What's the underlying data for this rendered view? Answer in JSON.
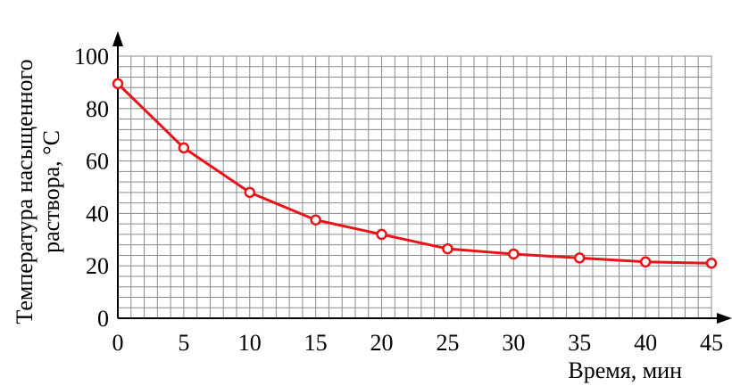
{
  "chart_data": {
    "type": "line",
    "title": "",
    "xlabel": "Время, мин",
    "ylabel_line1": "Температура насыщенного",
    "ylabel_line2": "раствора, °С",
    "xlim": [
      0,
      45
    ],
    "ylim": [
      0,
      100
    ],
    "x_ticks": [
      0,
      5,
      10,
      15,
      20,
      25,
      30,
      35,
      40,
      45
    ],
    "y_ticks": [
      0,
      20,
      40,
      60,
      80,
      100
    ],
    "minor_grid": {
      "x_step": 1,
      "y_step": 4
    },
    "grid": true,
    "series": [
      {
        "x": [
          0,
          5,
          10,
          15,
          20,
          25,
          30,
          35,
          40,
          45
        ],
        "y": [
          89.5,
          65,
          48,
          37.5,
          32,
          26.5,
          24.5,
          23,
          21.5,
          21
        ],
        "color": "#e8141a",
        "marker": "open-circle"
      }
    ]
  }
}
